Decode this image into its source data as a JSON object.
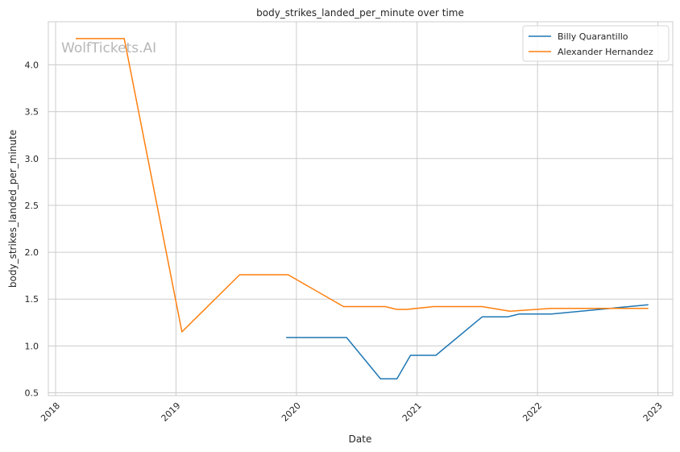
{
  "chart_data": {
    "type": "line",
    "title": "body_strikes_landed_per_minute over time",
    "xlabel": "Date",
    "ylabel": "body_strikes_landed_per_minute",
    "watermark": "WolfTickets.AI",
    "x_ticks": [
      "2018",
      "2019",
      "2020",
      "2021",
      "2022",
      "2023"
    ],
    "y_ticks": [
      "0.5",
      "1.0",
      "1.5",
      "2.0",
      "2.5",
      "3.0",
      "3.5",
      "4.0"
    ],
    "xlim": [
      "2017-12-10",
      "2023-02-15"
    ],
    "ylim": [
      0.47,
      4.46
    ],
    "grid": true,
    "legend_position": "top-right",
    "series": [
      {
        "name": "Billy Quarantillo",
        "color": "#1f77b4",
        "points": [
          [
            "2019-12-01",
            1.09
          ],
          [
            "2020-06-01",
            1.09
          ],
          [
            "2020-09-12",
            0.65
          ],
          [
            "2020-11-01",
            0.65
          ],
          [
            "2020-12-12",
            0.9
          ],
          [
            "2021-02-27",
            0.9
          ],
          [
            "2021-07-17",
            1.31
          ],
          [
            "2021-10-02",
            1.31
          ],
          [
            "2021-11-06",
            1.34
          ],
          [
            "2022-02-12",
            1.34
          ],
          [
            "2022-12-03",
            1.44
          ]
        ]
      },
      {
        "name": "Alexander Hernandez",
        "color": "#ff7f0e",
        "points": [
          [
            "2018-03-03",
            4.28
          ],
          [
            "2018-07-28",
            4.28
          ],
          [
            "2019-01-19",
            1.15
          ],
          [
            "2019-07-13",
            1.76
          ],
          [
            "2019-12-07",
            1.76
          ],
          [
            "2020-05-23",
            1.42
          ],
          [
            "2020-09-26",
            1.42
          ],
          [
            "2020-10-31",
            1.39
          ],
          [
            "2020-12-01",
            1.39
          ],
          [
            "2021-02-20",
            1.42
          ],
          [
            "2021-07-17",
            1.42
          ],
          [
            "2021-10-09",
            1.37
          ],
          [
            "2022-02-12",
            1.4
          ],
          [
            "2022-12-03",
            1.4
          ]
        ]
      }
    ]
  }
}
